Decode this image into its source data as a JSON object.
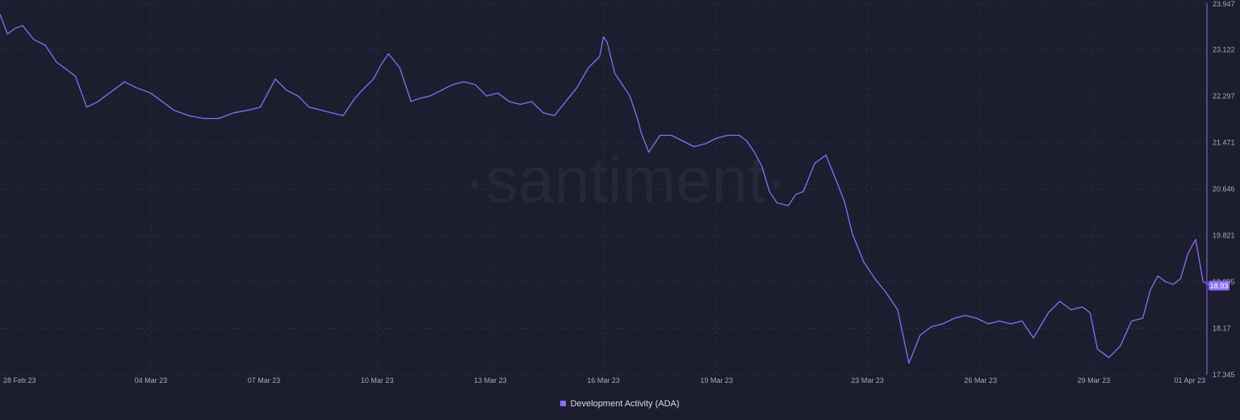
{
  "watermark": "·santiment·",
  "colors": {
    "background": "#1c1d2e",
    "series": "#8b6ef5",
    "grid": "#2c2e44",
    "axis_text": "#a6a9bd",
    "value_badge_bg": "#8b6ef5",
    "value_badge_text": "#ffffff"
  },
  "chart_data": {
    "type": "line",
    "title": "",
    "xlabel": "",
    "ylabel": "",
    "ylim": [
      17.345,
      23.947
    ],
    "y_ticks": [
      "23.947",
      "23.122",
      "22.297",
      "21.471",
      "20.646",
      "19.821",
      "18.995",
      "18.17",
      "17.345"
    ],
    "x_ticks": [
      {
        "label": "28 Feb 23",
        "day": 0
      },
      {
        "label": "04 Mar 23",
        "day": 4
      },
      {
        "label": "07 Mar 23",
        "day": 7
      },
      {
        "label": "10 Mar 23",
        "day": 10
      },
      {
        "label": "13 Mar 23",
        "day": 13
      },
      {
        "label": "16 Mar 23",
        "day": 16
      },
      {
        "label": "19 Mar 23",
        "day": 19
      },
      {
        "label": "23 Mar 23",
        "day": 23
      },
      {
        "label": "26 Mar 23",
        "day": 26
      },
      {
        "label": "29 Mar 23",
        "day": 29
      },
      {
        "label": "01 Apr 23",
        "day": 32
      }
    ],
    "grid": true,
    "legend_position": "bottom-center",
    "current_value": "18.93",
    "series": [
      {
        "name": "Development Activity (ADA)",
        "x": [
          0,
          0.2,
          0.4,
          0.6,
          0.9,
          1.2,
          1.5,
          1.8,
          2.0,
          2.3,
          2.6,
          3.0,
          3.3,
          3.6,
          4.0,
          4.3,
          4.6,
          5.0,
          5.4,
          5.8,
          6.2,
          6.6,
          6.9,
          7.1,
          7.3,
          7.6,
          7.9,
          8.2,
          8.5,
          8.8,
          9.1,
          9.4,
          9.6,
          9.9,
          10.1,
          10.3,
          10.6,
          10.9,
          11.1,
          11.4,
          11.7,
          12.0,
          12.3,
          12.6,
          12.9,
          13.2,
          13.5,
          13.8,
          14.1,
          14.4,
          14.7,
          15.0,
          15.3,
          15.6,
          15.9,
          16.0,
          16.1,
          16.3,
          16.5,
          16.7,
          16.9,
          17.0,
          17.2,
          17.5,
          17.8,
          18.1,
          18.4,
          18.7,
          19.0,
          19.3,
          19.6,
          19.8,
          20.0,
          20.2,
          20.4,
          20.6,
          20.9,
          21.1,
          21.3,
          21.6,
          21.9,
          22.2,
          22.4,
          22.6,
          22.9,
          23.2,
          23.5,
          23.8,
          24.1,
          24.4,
          24.7,
          25.0,
          25.3,
          25.6,
          25.9,
          26.2,
          26.5,
          26.8,
          27.1,
          27.4,
          27.8,
          28.1,
          28.4,
          28.7,
          28.9,
          29.1,
          29.4,
          29.7,
          30.0,
          30.3,
          30.5,
          30.7,
          30.9,
          31.1,
          31.3,
          31.5,
          31.7,
          31.9,
          32.1
        ],
        "values": [
          23.75,
          23.4,
          23.5,
          23.55,
          23.3,
          23.2,
          22.9,
          22.75,
          22.65,
          22.1,
          22.2,
          22.4,
          22.55,
          22.45,
          22.35,
          22.2,
          22.05,
          21.95,
          21.9,
          21.9,
          22.0,
          22.05,
          22.1,
          22.35,
          22.6,
          22.4,
          22.3,
          22.1,
          22.05,
          22.0,
          21.95,
          22.25,
          22.4,
          22.6,
          22.85,
          23.05,
          22.8,
          22.2,
          22.25,
          22.3,
          22.4,
          22.5,
          22.55,
          22.5,
          22.3,
          22.35,
          22.2,
          22.15,
          22.2,
          22.0,
          21.95,
          22.2,
          22.45,
          22.8,
          23.0,
          23.35,
          23.25,
          22.7,
          22.5,
          22.3,
          21.9,
          21.65,
          21.3,
          21.6,
          21.6,
          21.5,
          21.4,
          21.45,
          21.55,
          21.6,
          21.6,
          21.5,
          21.3,
          21.05,
          20.6,
          20.4,
          20.35,
          20.55,
          20.6,
          21.1,
          21.25,
          20.75,
          20.4,
          19.85,
          19.35,
          19.05,
          18.8,
          18.5,
          17.55,
          18.05,
          18.2,
          18.25,
          18.35,
          18.4,
          18.35,
          18.25,
          18.3,
          18.25,
          18.3,
          18.0,
          18.45,
          18.65,
          18.5,
          18.55,
          18.45,
          17.8,
          17.65,
          17.85,
          18.3,
          18.35,
          18.85,
          19.1,
          19.0,
          18.95,
          19.05,
          19.5,
          19.75,
          19.0,
          18.93
        ]
      }
    ]
  }
}
